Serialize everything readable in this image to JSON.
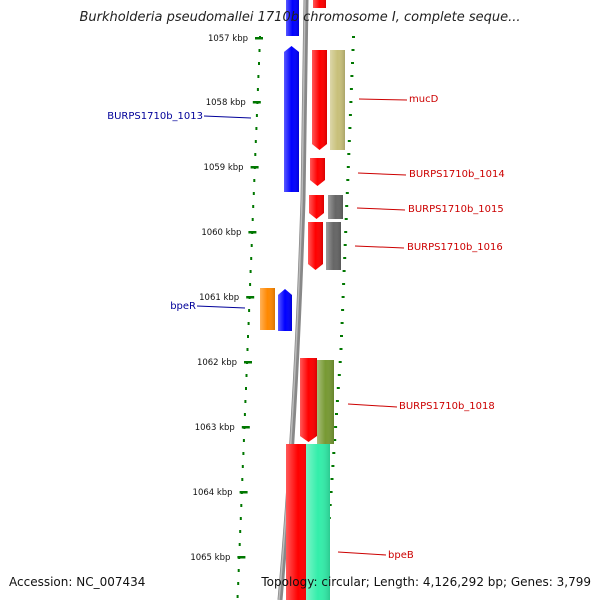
{
  "title": "Burkholderia pseudomallei 1710b chromosome I, complete seque...",
  "footer": {
    "accession": "Accession: NC_007434",
    "topology": "Topology: circular; Length: 4,126,292 bp; Genes: 3,799"
  },
  "colors": {
    "ruler": "#007700",
    "backbone": "#888888",
    "forward_label": "#000099",
    "reverse_label": "#cc0000",
    "blue": "#0000ff",
    "orange": "#ff8800",
    "red": "#ff0000",
    "tan": "#c8c07a",
    "grey": "#666666",
    "olive": "#779933",
    "teal": "#33eeaa"
  },
  "ruler": {
    "ticks": [
      {
        "label": "1057 kbp"
      },
      {
        "label": "1058 kbp"
      },
      {
        "label": "1059 kbp"
      },
      {
        "label": "1060 kbp"
      },
      {
        "label": "1061 kbp"
      },
      {
        "label": "1062 kbp"
      },
      {
        "label": "1063 kbp"
      },
      {
        "label": "1064 kbp"
      },
      {
        "label": "1065 kbp"
      }
    ]
  },
  "gene_labels": {
    "left": [
      {
        "name": "BURPS1710b_1013"
      },
      {
        "name": "bpeR"
      }
    ],
    "right": [
      {
        "name": "mucD"
      },
      {
        "name": "BURPS1710b_1014"
      },
      {
        "name": "BURPS1710b_1015"
      },
      {
        "name": "BURPS1710b_1016"
      },
      {
        "name": "BURPS1710b_1018"
      },
      {
        "name": "bpeB"
      }
    ]
  }
}
